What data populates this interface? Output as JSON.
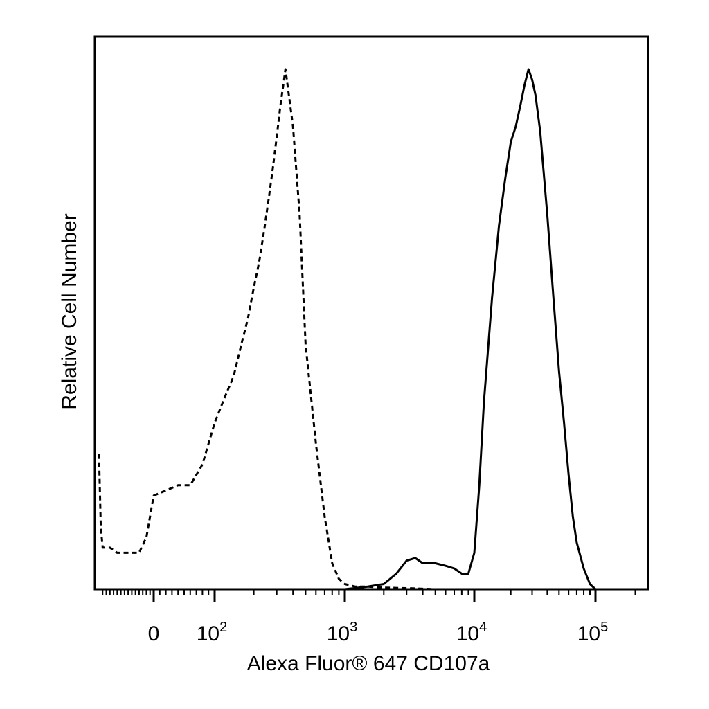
{
  "chart_data": {
    "type": "line",
    "title": "",
    "xlabel": "Alexa Fluor® 647 CD107a",
    "ylabel": "Relative Cell Number",
    "x_scale": "biexponential",
    "xlim": [
      -150,
      250000
    ],
    "ylim": [
      0,
      100
    ],
    "grid": false,
    "legend": "none",
    "x_ticks": [
      {
        "value": 0,
        "base": "0",
        "exp": ""
      },
      {
        "value": 100,
        "base": "10",
        "exp": "2"
      },
      {
        "value": 1000,
        "base": "10",
        "exp": "3"
      },
      {
        "value": 10000,
        "base": "10",
        "exp": "4"
      },
      {
        "value": 100000,
        "base": "10",
        "exp": "5"
      }
    ],
    "series": [
      {
        "style": "dashed",
        "x": [
          -150,
          -145,
          -140,
          -120,
          -100,
          -80,
          -60,
          -40,
          -20,
          0,
          20,
          40,
          60,
          80,
          100,
          120,
          140,
          160,
          180,
          200,
          220,
          240,
          260,
          280,
          300,
          320,
          350,
          400,
          450,
          500,
          600,
          700,
          800,
          900,
          1000,
          1200,
          1500,
          2000,
          3000,
          5000
        ],
        "y": [
          26,
          12,
          8,
          8,
          7,
          7,
          7,
          7,
          10,
          18,
          19,
          20,
          20,
          24,
          32,
          37,
          41,
          47,
          52,
          58,
          63,
          69,
          75,
          81,
          87,
          93,
          100,
          89,
          72,
          47,
          28,
          14,
          5,
          2,
          1,
          0.5,
          0.5,
          0.3,
          0.2,
          0
        ],
        "color": "#000000"
      },
      {
        "style": "solid",
        "x": [
          1000,
          1500,
          2000,
          2500,
          3000,
          3500,
          4000,
          5000,
          6000,
          7000,
          8000,
          9000,
          10000,
          11000,
          12000,
          14000,
          16000,
          18000,
          20000,
          22000,
          24000,
          26000,
          28000,
          30000,
          32000,
          35000,
          40000,
          45000,
          50000,
          55000,
          60000,
          65000,
          70000,
          80000,
          90000,
          100000
        ],
        "y": [
          0,
          0.5,
          1,
          3,
          5.5,
          6,
          5,
          5,
          4.5,
          4,
          3,
          3,
          7,
          20,
          36,
          56,
          70,
          79,
          86,
          89,
          93,
          97,
          100,
          98,
          95,
          88,
          72,
          56,
          42,
          32,
          22,
          14,
          9,
          4,
          1,
          0
        ],
        "color": "#000000"
      }
    ]
  }
}
